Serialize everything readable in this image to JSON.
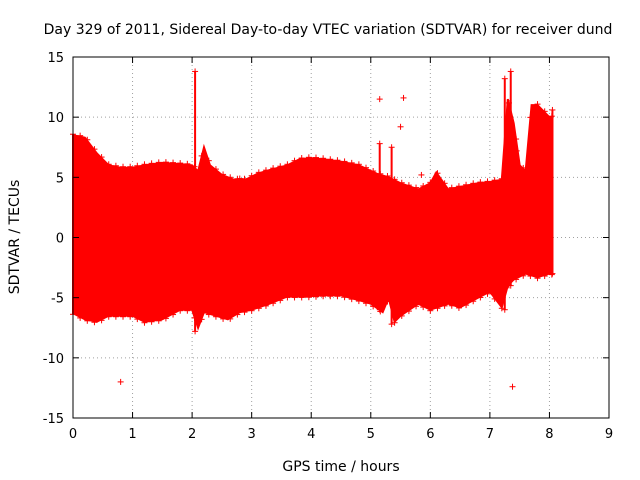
{
  "chart_data": {
    "type": "scatter",
    "title": "Day 329 of 2011, Sidereal Day-to-day VTEC variation (SDTVAR) for receiver dund",
    "xlabel": "GPS time / hours",
    "ylabel": "SDTVAR / TECUs",
    "xlim": [
      0,
      9
    ],
    "ylim": [
      -15,
      15
    ],
    "xticks": [
      "0",
      "1",
      "2",
      "3",
      "4",
      "5",
      "6",
      "7",
      "8",
      "9"
    ],
    "yticks": [
      "-15",
      "-10",
      "-5",
      "0",
      "5",
      "10",
      "15"
    ],
    "grid": true,
    "marker": "+",
    "color": "#ff0000",
    "envelope": {
      "description": "dense band of + markers; upper and lower bounds of the point cloud vs time (hours)",
      "upper": [
        [
          0.0,
          8.5
        ],
        [
          0.2,
          8.3
        ],
        [
          0.4,
          7.0
        ],
        [
          0.6,
          6.0
        ],
        [
          0.8,
          5.8
        ],
        [
          1.0,
          5.8
        ],
        [
          1.2,
          6.0
        ],
        [
          1.5,
          6.2
        ],
        [
          1.8,
          6.1
        ],
        [
          2.0,
          6.0
        ],
        [
          2.1,
          5.5
        ],
        [
          2.2,
          7.5
        ],
        [
          2.3,
          6.0
        ],
        [
          2.5,
          5.2
        ],
        [
          2.7,
          4.8
        ],
        [
          2.9,
          4.8
        ],
        [
          3.1,
          5.3
        ],
        [
          3.3,
          5.6
        ],
        [
          3.6,
          6.0
        ],
        [
          3.8,
          6.5
        ],
        [
          4.0,
          6.6
        ],
        [
          4.2,
          6.5
        ],
        [
          4.5,
          6.3
        ],
        [
          4.8,
          6.0
        ],
        [
          5.1,
          5.3
        ],
        [
          5.3,
          5.0
        ],
        [
          5.5,
          4.5
        ],
        [
          5.8,
          4.0
        ],
        [
          6.0,
          4.5
        ],
        [
          6.1,
          5.4
        ],
        [
          6.3,
          4.0
        ],
        [
          6.5,
          4.2
        ],
        [
          6.8,
          4.5
        ],
        [
          7.0,
          4.6
        ],
        [
          7.2,
          4.8
        ],
        [
          7.3,
          11.5
        ],
        [
          7.4,
          9.5
        ],
        [
          7.5,
          6.0
        ],
        [
          7.6,
          5.5
        ],
        [
          7.7,
          11.0
        ],
        [
          7.8,
          11.0
        ],
        [
          7.9,
          10.5
        ],
        [
          8.0,
          10.0
        ],
        [
          8.05,
          10.0
        ]
      ],
      "lower": [
        [
          0.0,
          -6.3
        ],
        [
          0.2,
          -6.8
        ],
        [
          0.4,
          -7.0
        ],
        [
          0.6,
          -6.5
        ],
        [
          0.8,
          -6.5
        ],
        [
          1.0,
          -6.5
        ],
        [
          1.2,
          -7.0
        ],
        [
          1.5,
          -6.8
        ],
        [
          1.8,
          -6.0
        ],
        [
          2.0,
          -6.0
        ],
        [
          2.1,
          -7.5
        ],
        [
          2.2,
          -6.2
        ],
        [
          2.4,
          -6.5
        ],
        [
          2.6,
          -6.8
        ],
        [
          2.8,
          -6.2
        ],
        [
          3.0,
          -6.0
        ],
        [
          3.3,
          -5.5
        ],
        [
          3.6,
          -4.9
        ],
        [
          3.9,
          -4.9
        ],
        [
          4.2,
          -4.8
        ],
        [
          4.5,
          -4.8
        ],
        [
          4.8,
          -5.2
        ],
        [
          5.0,
          -5.5
        ],
        [
          5.2,
          -6.2
        ],
        [
          5.3,
          -5.0
        ],
        [
          5.4,
          -7.0
        ],
        [
          5.5,
          -6.5
        ],
        [
          5.8,
          -5.5
        ],
        [
          6.0,
          -6.0
        ],
        [
          6.3,
          -5.5
        ],
        [
          6.5,
          -5.8
        ],
        [
          6.8,
          -5.0
        ],
        [
          7.0,
          -4.5
        ],
        [
          7.2,
          -5.8
        ],
        [
          7.3,
          -4.0
        ],
        [
          7.4,
          -3.5
        ],
        [
          7.6,
          -3.0
        ],
        [
          7.8,
          -3.3
        ],
        [
          8.0,
          -3.0
        ],
        [
          8.05,
          -3.0
        ]
      ]
    },
    "spikes": [
      {
        "x": 2.05,
        "low": -7.8,
        "high": 13.8
      },
      {
        "x": 5.15,
        "low": -6.0,
        "high": 7.8
      },
      {
        "x": 5.35,
        "low": -7.2,
        "high": 7.5
      },
      {
        "x": 7.25,
        "low": -6.0,
        "high": 13.2
      },
      {
        "x": 7.35,
        "low": -4.0,
        "high": 13.8
      },
      {
        "x": 8.05,
        "low": -3.0,
        "high": 10.6
      }
    ],
    "outliers": [
      [
        0.8,
        -12.0
      ],
      [
        5.15,
        11.5
      ],
      [
        5.5,
        9.2
      ],
      [
        5.55,
        11.6
      ],
      [
        7.38,
        -12.4
      ],
      [
        7.45,
        7.2
      ],
      [
        2.8,
        4.9
      ],
      [
        5.85,
        5.2
      ]
    ]
  }
}
